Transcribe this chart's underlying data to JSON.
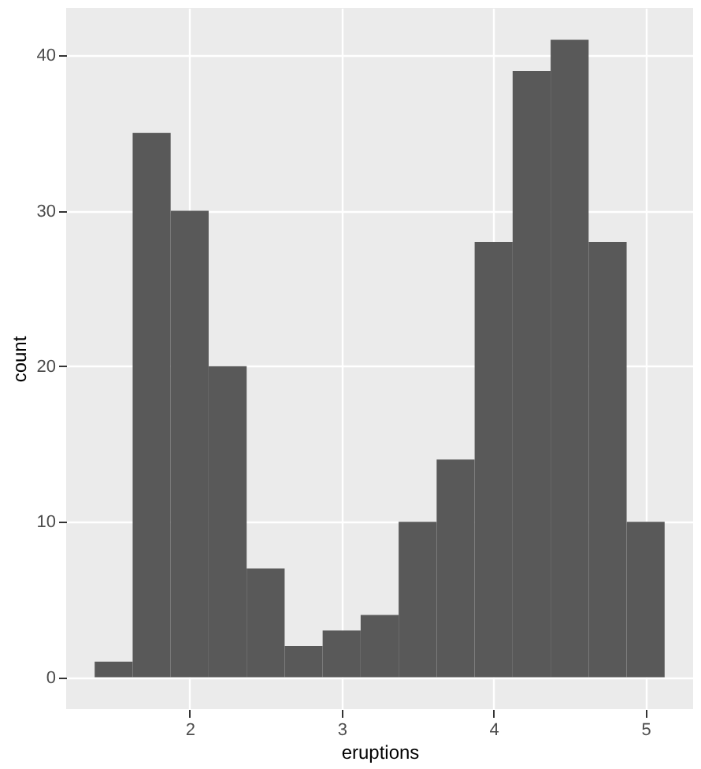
{
  "chart_data": {
    "type": "histogram",
    "xlabel": "eruptions",
    "ylabel": "count",
    "bins": [
      1.375,
      1.625,
      1.875,
      2.125,
      2.375,
      2.625,
      2.875,
      3.125,
      3.375,
      3.625,
      3.875,
      4.125,
      4.375,
      4.625,
      4.875,
      5.125
    ],
    "values": [
      1,
      35,
      30,
      20,
      7,
      2,
      3,
      4,
      10,
      14,
      28,
      39,
      41,
      28,
      10
    ],
    "color": "#595959",
    "xlim": [
      1.1875,
      5.3125
    ],
    "xticks": [
      2,
      3,
      4,
      5
    ],
    "ylim": [
      -2.05,
      43.05
    ],
    "yticks": [
      0,
      10,
      20,
      30,
      40
    ],
    "grid": true
  }
}
